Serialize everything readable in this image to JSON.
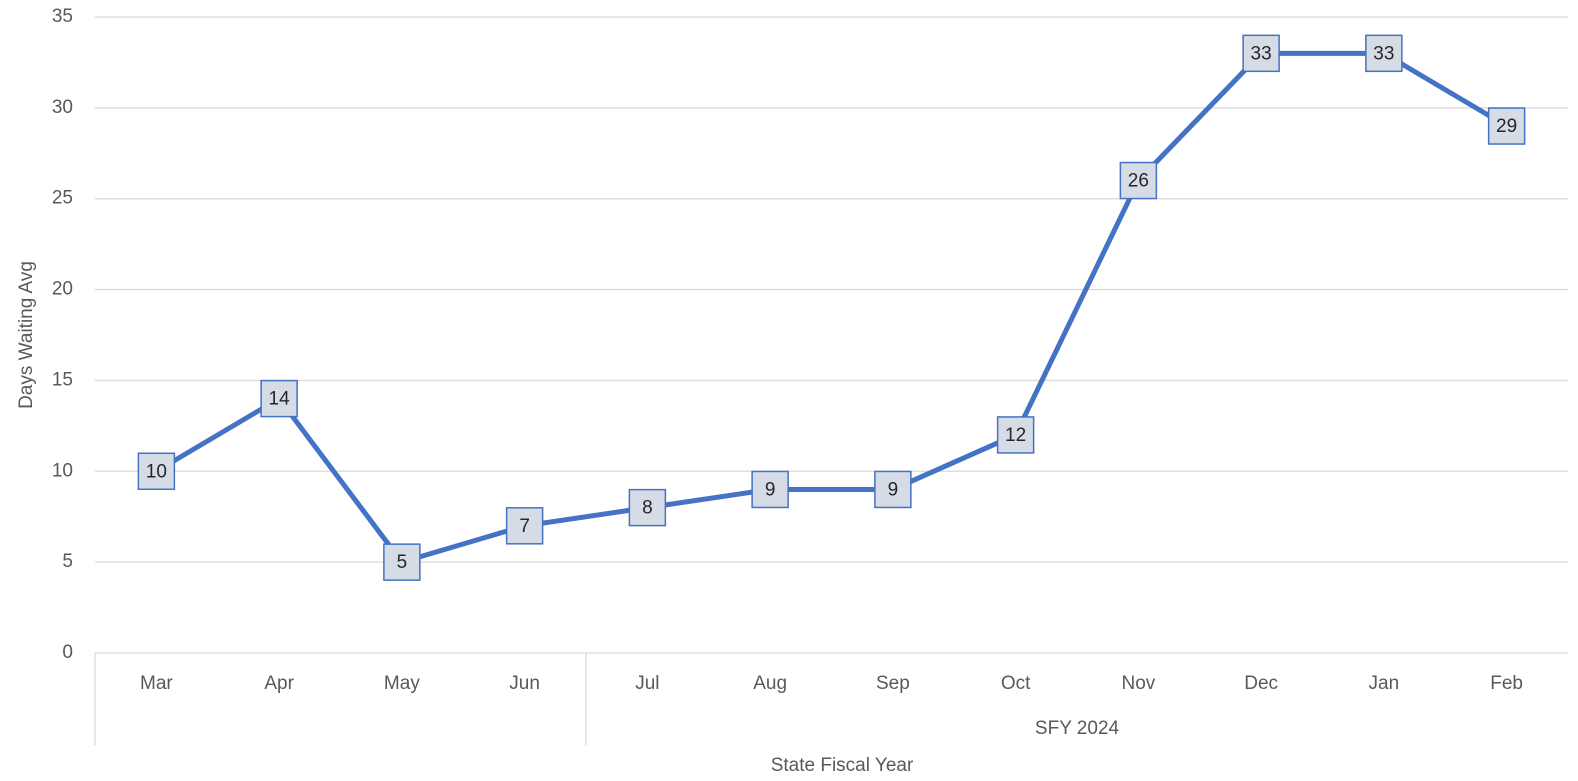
{
  "chart_data": {
    "type": "line",
    "categories": [
      "Mar",
      "Apr",
      "May",
      "Jun",
      "Jul",
      "Aug",
      "Sep",
      "Oct",
      "Nov",
      "Dec",
      "Jan",
      "Feb"
    ],
    "groups": [
      null,
      null,
      null,
      null,
      "SFY 2024",
      "SFY 2024",
      "SFY 2024",
      "SFY 2024",
      "SFY 2024",
      "SFY 2024",
      "SFY 2024",
      "SFY 2024"
    ],
    "series": [
      {
        "name": "Days Waiting Avg",
        "color": "#4472c4",
        "values": [
          10,
          14,
          5,
          7,
          8,
          9,
          9,
          12,
          26,
          33,
          33,
          29
        ]
      }
    ],
    "ylabel": "Days Waiting Avg",
    "xlabel": "State Fiscal Year",
    "ylim": [
      0,
      35
    ],
    "yticks": [
      0,
      5,
      10,
      15,
      20,
      25,
      30,
      35
    ],
    "grid": true
  }
}
